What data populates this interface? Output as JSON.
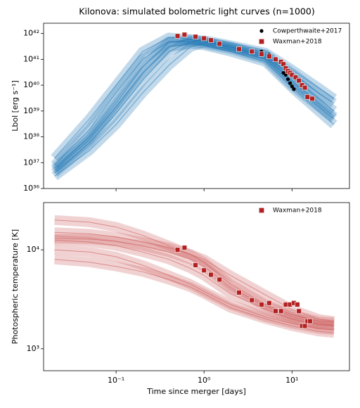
{
  "chart_data": [
    {
      "type": "line",
      "title": "Kilonova: simulated bolometric light curves (n=1000)",
      "y_label": "Lbol [erg s⁻¹]",
      "xscale": "log",
      "yscale": "log",
      "legend": "upper right",
      "xlim": [
        0.015,
        45
      ],
      "ylim": [
        1e+36,
        2.5e+42
      ],
      "yticks": [
        {
          "value": 1e+36,
          "label": "10³⁶"
        },
        {
          "value": 1e+37,
          "label": "10³⁷"
        },
        {
          "value": 1e+38,
          "label": "10³⁸"
        },
        {
          "value": 1e+39,
          "label": "10³⁹"
        },
        {
          "value": 1e+40,
          "label": "10⁴⁰"
        },
        {
          "value": 1e+41,
          "label": "10⁴¹"
        },
        {
          "value": 1e+42,
          "label": "10⁴²"
        }
      ],
      "curve_color": "#1f77b4",
      "x": [
        0.02,
        0.05,
        0.1,
        0.2,
        0.4,
        0.7,
        1,
        2,
        5,
        10,
        20,
        30
      ],
      "curves": [
        [
          6e+36,
          1e+38,
          2e+39,
          5e+40,
          4.5e+41,
          6e+41,
          5e+41,
          3e+41,
          1.5e+41,
          2e+40,
          3e+39,
          1e+39
        ],
        [
          1.5e+37,
          5e+38,
          1e+40,
          2e+41,
          7e+41,
          6e+41,
          5e+41,
          3e+41,
          1.5e+41,
          3e+40,
          5e+39,
          2e+39
        ],
        [
          3e+36,
          3e+37,
          3e+38,
          5e+39,
          6e+40,
          3e+41,
          4.5e+41,
          3e+41,
          1.2e+41,
          1.5e+40,
          2e+39,
          6e+38
        ],
        [
          8e+36,
          2e+38,
          5e+39,
          1e+41,
          5e+41,
          5e+41,
          4e+41,
          2.5e+41,
          1e+41,
          1e+40,
          1.5e+39,
          5e+38
        ],
        [
          4e+36,
          6e+37,
          8e+38,
          1.5e+40,
          2e+41,
          5e+41,
          5.5e+41,
          3.5e+41,
          1.8e+41,
          4e+40,
          8e+39,
          3e+39
        ],
        [
          5e+36,
          8e+37,
          1.5e+39,
          3e+40,
          3e+41,
          4e+41,
          3.5e+41,
          2e+41,
          8e+40,
          8e+39,
          1e+39,
          3e+38
        ]
      ],
      "series": [
        {
          "name": "Cowperthwaite+2017",
          "color": "#000000",
          "marker": "circle",
          "x": [
            4.5,
            5.5,
            6.5,
            8.0,
            8.5,
            9,
            9.5,
            10,
            10.5
          ],
          "values": [
            2e+41,
            1.5e+41,
            1e+41,
            3e+40,
            2.5e+40,
            1.7e+40,
            1.2e+40,
            9e+39,
            7e+39
          ]
        },
        {
          "name": "Waxman+2018",
          "color": "#b22222",
          "marker": "square",
          "x": [
            0.5,
            0.6,
            0.8,
            1.0,
            1.2,
            1.5,
            2.5,
            3.5,
            4.5,
            5.5,
            6.5,
            7.5,
            8.0,
            8.5,
            9.0,
            9.5,
            10,
            11,
            12,
            13,
            14,
            15,
            17
          ],
          "values": [
            8e+41,
            9e+41,
            7.5e+41,
            6.5e+41,
            5.5e+41,
            4e+41,
            2.5e+41,
            2e+41,
            1.6e+41,
            1.3e+41,
            1e+41,
            8e+40,
            6.5e+40,
            4.5e+40,
            3.5e+40,
            3e+40,
            2.5e+40,
            2e+40,
            1.5e+40,
            1e+40,
            8e+39,
            3.5e+39,
            3e+39
          ]
        }
      ]
    },
    {
      "type": "line",
      "x_label": "Time since merger [days]",
      "y_label": "Photospheric temperature [K]",
      "xscale": "log",
      "yscale": "log",
      "legend": "upper right",
      "xlim": [
        0.015,
        45
      ],
      "ylim": [
        600,
        30000
      ],
      "xticks": [
        {
          "value": 0.1,
          "label": "10⁻¹"
        },
        {
          "value": 1,
          "label": "10⁰"
        },
        {
          "value": 10,
          "label": "10¹"
        }
      ],
      "yticks": [
        {
          "value": 1000,
          "label": "10³"
        },
        {
          "value": 10000,
          "label": "10⁴"
        }
      ],
      "curve_color": "#cd5c5c",
      "x": [
        0.02,
        0.05,
        0.1,
        0.2,
        0.4,
        0.7,
        1,
        2,
        5,
        10,
        20,
        30
      ],
      "curves": [
        [
          12500,
          12000,
          11000,
          9500,
          8000,
          6500,
          5500,
          3600,
          2500,
          2000,
          1750,
          1700
        ],
        [
          15000,
          14500,
          13500,
          12000,
          10500,
          9000,
          8000,
          5500,
          3500,
          2500,
          2000,
          1900
        ],
        [
          10000,
          9500,
          8500,
          7000,
          5500,
          4500,
          3800,
          2800,
          2100,
          1800,
          1600,
          1550
        ],
        [
          20000,
          19000,
          17000,
          14000,
          11000,
          9000,
          7500,
          4500,
          2800,
          2200,
          1900,
          1850
        ],
        [
          8000,
          7500,
          6800,
          6000,
          5000,
          4200,
          3600,
          2600,
          2000,
          1700,
          1500,
          1450
        ],
        [
          13000,
          12800,
          12200,
          11000,
          9500,
          8000,
          6800,
          4200,
          2700,
          2100,
          1800,
          1750
        ]
      ],
      "series": [
        {
          "name": "Waxman+2018",
          "color": "#b22222",
          "marker": "square",
          "x": [
            0.5,
            0.6,
            0.8,
            1.0,
            1.2,
            1.5,
            2.5,
            3.5,
            4.5,
            5.5,
            6.5,
            7.5,
            8.5,
            9.5,
            10.5,
            11.5,
            12,
            13,
            14,
            15,
            16
          ],
          "values": [
            10000,
            10500,
            7000,
            6200,
            5600,
            5000,
            3700,
            3100,
            2800,
            2900,
            2400,
            2400,
            2800,
            2800,
            2900,
            2800,
            2400,
            1700,
            1700,
            1900,
            1900
          ]
        }
      ]
    }
  ]
}
